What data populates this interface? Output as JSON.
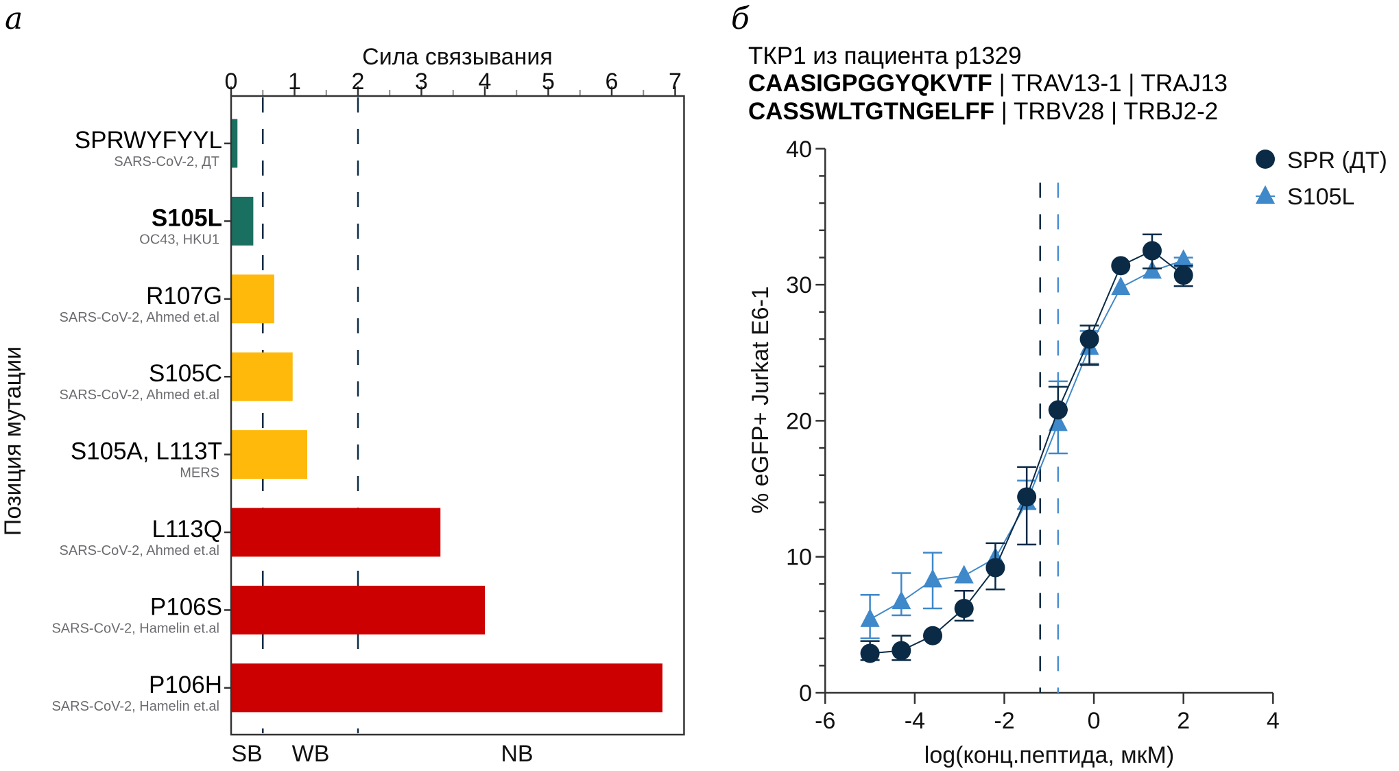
{
  "panels": {
    "a": "а",
    "b": "б"
  },
  "chart_data": [
    {
      "type": "bar",
      "orientation": "horizontal",
      "panel": "а",
      "title": "Сила связывания",
      "xlabel": "Сила связывания",
      "ylabel": "Позиция мутации",
      "xlim": [
        0,
        7.14
      ],
      "xticks": [
        0,
        1,
        2,
        3,
        4,
        5,
        6,
        7
      ],
      "x_axis_position": "top",
      "grid": false,
      "thresholds": [
        {
          "value": 0.5,
          "style": "dashed",
          "color": "#0d2b45"
        },
        {
          "value": 2,
          "style": "dashed",
          "color": "#0d2b45"
        }
      ],
      "zone_labels": [
        {
          "text": "SB",
          "at": 0.25
        },
        {
          "text": "WB",
          "at": 1.25
        },
        {
          "text": "NB",
          "at": 4.5
        }
      ],
      "categories": [
        {
          "label": "SPRWYFYYL",
          "sublabel": "SARS-CoV-2, ДТ",
          "bold": false
        },
        {
          "label": "S105L",
          "sublabel": "OC43, HKU1",
          "bold": true
        },
        {
          "label": "R107G",
          "sublabel": "SARS-CoV-2,  Ahmed et.al",
          "bold": false
        },
        {
          "label": "S105C",
          "sublabel": "SARS-CoV-2,  Ahmed et.al",
          "bold": false
        },
        {
          "label": "S105A, L113T",
          "sublabel": "MERS",
          "bold": false
        },
        {
          "label": "L113Q",
          "sublabel": "SARS-CoV-2,  Ahmed et.al",
          "bold": false
        },
        {
          "label": "P106S",
          "sublabel": "SARS-CoV-2,  Hamelin et.al",
          "bold": false
        },
        {
          "label": "P106H",
          "sublabel": "SARS-CoV-2,  Hamelin et.al",
          "bold": false
        }
      ],
      "values": [
        0.1,
        0.35,
        0.68,
        0.97,
        1.2,
        3.3,
        4.0,
        6.8
      ],
      "colors": [
        "#1a7060",
        "#1a7060",
        "#ffb90a",
        "#ffb90a",
        "#ffb90a",
        "#cc0000",
        "#cc0000",
        "#cc0000"
      ]
    },
    {
      "type": "line",
      "panel": "б",
      "title_lines": [
        {
          "bold": "",
          "normal": "ТКР1 из пациента p1329"
        },
        {
          "bold": "CAASIGPGGYQKVTF",
          "normal": " | TRAV13-1 | TRAJ13"
        },
        {
          "bold": "CASSWLTGTNGELFF",
          "normal": " | TRBV28 | TRBJ2-2"
        }
      ],
      "xlabel": "log(конц.пептида, мкМ)",
      "ylabel": "% eGFP+ Jurkat E6-1",
      "xlim": [
        -6,
        4
      ],
      "ylim": [
        0,
        40
      ],
      "xticks": [
        -6,
        -4,
        -2,
        0,
        2,
        4
      ],
      "yticks": [
        0,
        10,
        20,
        30,
        40
      ],
      "grid": false,
      "legend_position": "top-right",
      "vlines": [
        {
          "x": -1.2,
          "color": "#0d2b45",
          "style": "dashed",
          "series": "SPR (ДТ)"
        },
        {
          "x": -0.8,
          "color": "#4a8fd0",
          "style": "dashed",
          "series": "S105L"
        }
      ],
      "series": [
        {
          "name": "SPR (ДТ)",
          "marker": "circle",
          "color": "#0a2a45",
          "x": [
            -5,
            -4.3,
            -3.6,
            -2.9,
            -2.2,
            -1.5,
            -0.8,
            -0.1,
            0.6,
            1.3,
            2
          ],
          "y": [
            2.9,
            3.1,
            4.2,
            6.2,
            9.2,
            14.4,
            20.8,
            26.0,
            31.4,
            32.5,
            30.7
          ],
          "err_low": [
            2.4,
            2.4,
            4.2,
            5.3,
            7.6,
            10.9,
            20.8,
            24.1,
            31.4,
            31.2,
            29.9
          ],
          "err_high": [
            3.8,
            4.2,
            4.2,
            7.5,
            11.0,
            16.6,
            22.5,
            27.0,
            31.4,
            33.7,
            31.4
          ]
        },
        {
          "name": "S105L",
          "marker": "triangle",
          "color": "#3f88c9",
          "x": [
            -5,
            -4.3,
            -3.6,
            -2.9,
            -2.2,
            -1.5,
            -0.8,
            -0.1,
            0.6,
            1.3,
            2
          ],
          "y": [
            5.4,
            6.7,
            8.3,
            8.6,
            9.9,
            14.0,
            19.8,
            25.4,
            29.8,
            31.0,
            31.8
          ],
          "err_low": [
            4.0,
            5.7,
            6.2,
            8.6,
            9.9,
            13.5,
            17.6,
            24.2,
            29.8,
            31.0,
            31.5
          ],
          "err_high": [
            7.2,
            8.8,
            10.3,
            8.6,
            9.9,
            15.6,
            22.9,
            26.6,
            29.8,
            31.0,
            32.0
          ]
        }
      ]
    }
  ]
}
